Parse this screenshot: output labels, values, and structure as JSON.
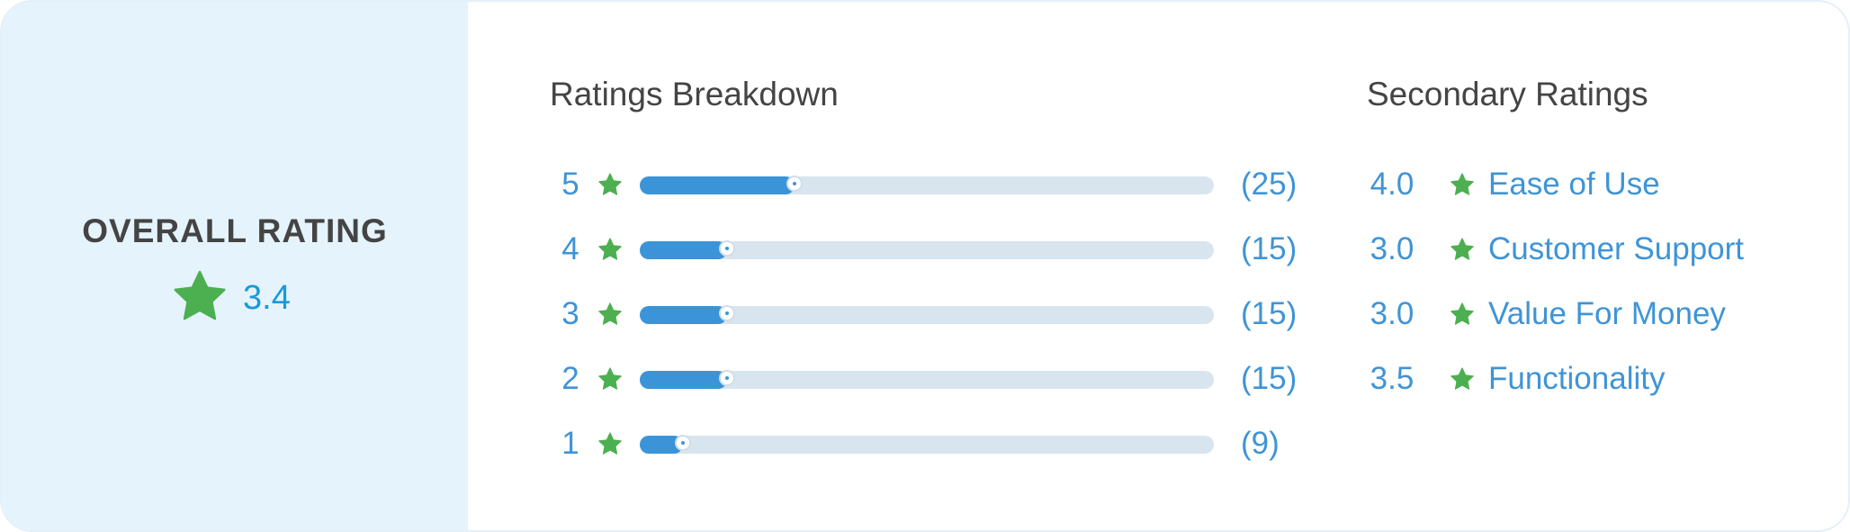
{
  "colors": {
    "star": "#4caf50",
    "accent": "#3f94d6",
    "bar_fill": "#3c94d8",
    "bar_track": "#d8e5ef",
    "panel": "#e5f3fc"
  },
  "overall": {
    "title": "OVERALL RATING",
    "value": "3.4",
    "icon": "star-icon"
  },
  "breakdown": {
    "title": "Ratings Breakdown",
    "rows": [
      {
        "stars": "5",
        "count": "(25)",
        "fraction": 0.27
      },
      {
        "stars": "4",
        "count": "(15)",
        "fraction": 0.152
      },
      {
        "stars": "3",
        "count": "(15)",
        "fraction": 0.152
      },
      {
        "stars": "2",
        "count": "(15)",
        "fraction": 0.152
      },
      {
        "stars": "1",
        "count": "(9)",
        "fraction": 0.075
      }
    ]
  },
  "secondary": {
    "title": "Secondary Ratings",
    "rows": [
      {
        "value": "4.0",
        "label": "Ease of Use"
      },
      {
        "value": "3.0",
        "label": "Customer Support"
      },
      {
        "value": "3.0",
        "label": "Value For Money"
      },
      {
        "value": "3.5",
        "label": "Functionality"
      }
    ]
  }
}
